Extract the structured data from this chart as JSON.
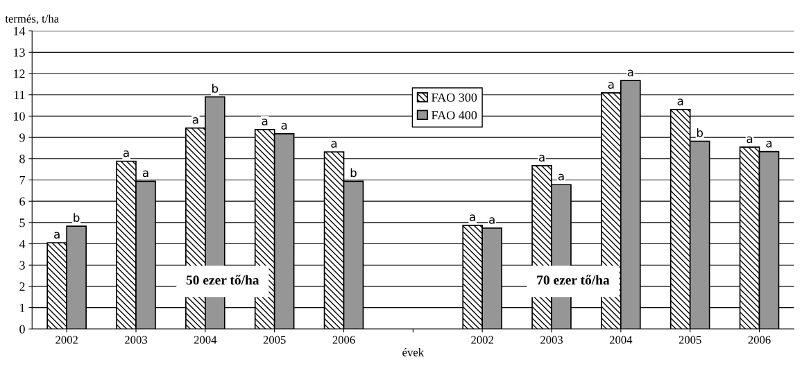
{
  "chart_data": {
    "type": "bar",
    "ylabel": "termés, t/ha",
    "xlabel": "évek",
    "categories": [
      "2002",
      "2003",
      "2004",
      "2005",
      "2006",
      null,
      "2002",
      "2003",
      "2004",
      "2005",
      "2006"
    ],
    "series": [
      {
        "name": "FAO 300",
        "color": "#000000",
        "values": [
          4.05,
          7.88,
          9.44,
          9.37,
          8.32,
          null,
          4.87,
          7.67,
          11.09,
          10.31,
          8.54
        ],
        "value_labels": [
          "a",
          "a",
          "a",
          "a",
          "a",
          null,
          "a",
          "a",
          "a",
          "a",
          "a"
        ]
      },
      {
        "name": "FAO 400",
        "color": "#969696",
        "values": [
          4.83,
          6.94,
          10.9,
          9.17,
          6.94,
          null,
          4.74,
          6.78,
          11.67,
          8.82,
          8.33
        ],
        "value_labels": [
          "b",
          "a",
          "b",
          "a",
          "b",
          null,
          "a",
          "a",
          "a",
          "b",
          "a"
        ]
      }
    ],
    "annotations": [
      "50 ezer tő/ha",
      "70 ezer tő/ha"
    ],
    "ylim": [
      0,
      14
    ],
    "yticks": [
      0,
      1,
      2,
      3,
      4,
      5,
      6,
      7,
      8,
      9,
      10,
      11,
      12,
      13,
      14
    ],
    "grid": "y",
    "legend": "top"
  }
}
